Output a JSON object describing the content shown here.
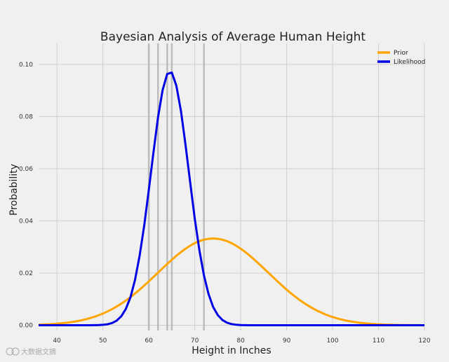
{
  "chart_data": {
    "type": "line",
    "title": "Bayesian Analysis of Average Human Height",
    "xlabel": "Height in Inches",
    "ylabel": "Probability",
    "xlim": [
      36,
      120
    ],
    "ylim": [
      -0.002,
      0.108
    ],
    "x_ticks": [
      40,
      50,
      60,
      70,
      80,
      90,
      100,
      110,
      120
    ],
    "y_ticks": [
      0.0,
      0.02,
      0.04,
      0.06,
      0.08,
      0.1
    ],
    "y_tick_labels": [
      "0.00",
      "0.02",
      "0.04",
      "0.06",
      "0.08",
      "0.10"
    ],
    "grid": true,
    "legend_position": "top-right",
    "series": [
      {
        "name": "Prior",
        "color": "#ffa500",
        "distribution": "normal",
        "mean": 74.0,
        "std": 12.0
      },
      {
        "name": "Likelihood",
        "color": "#0000e6",
        "distribution": "normal",
        "mean": 64.6,
        "std": 4.1
      }
    ],
    "observations": [
      60.0,
      62.0,
      64.0,
      65.0,
      72.0
    ],
    "observation_color": "#b4b4b4"
  },
  "watermark": {
    "text": "大数据文摘"
  }
}
